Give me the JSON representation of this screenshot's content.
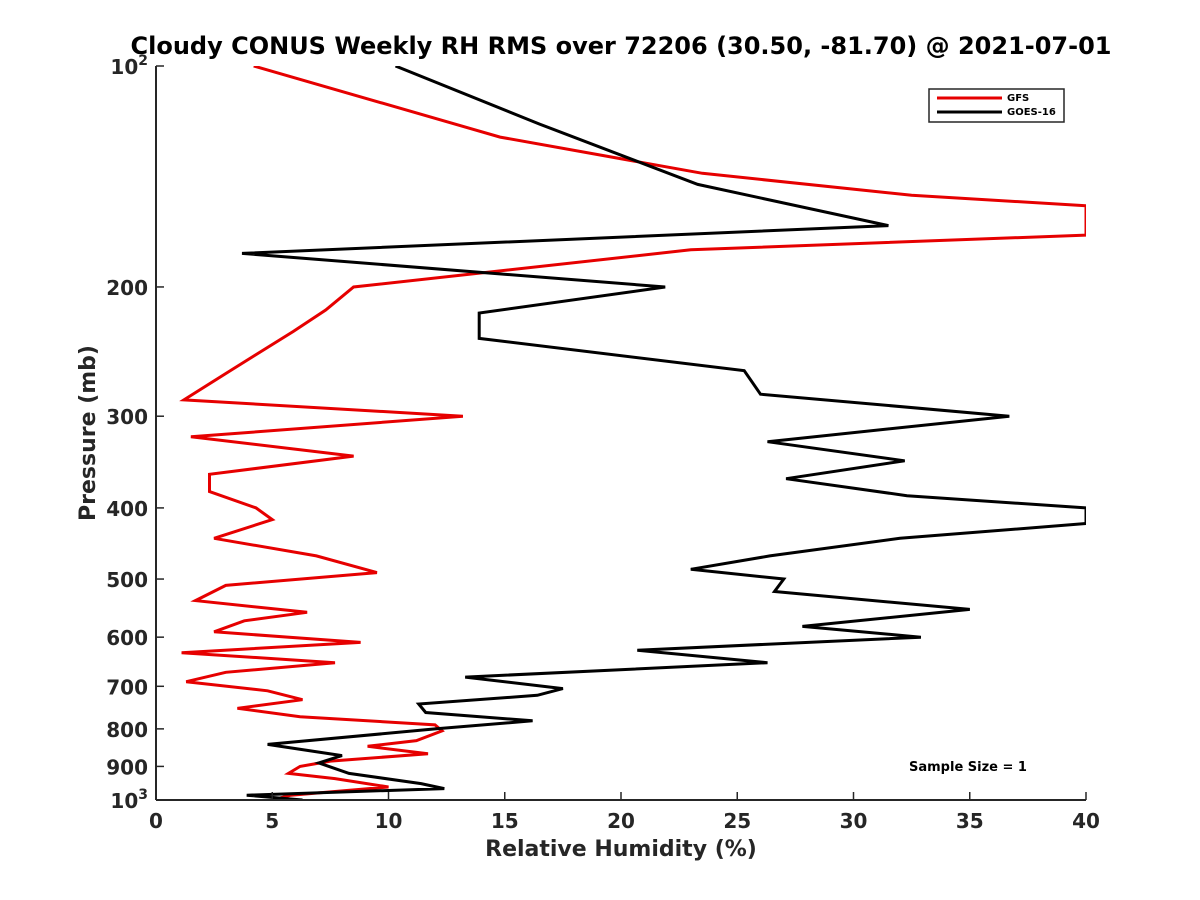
{
  "chart_data": {
    "type": "line",
    "title": "Cloudy CONUS Weekly RH RMS over 72206 (30.50, -81.70) @ 2021-07-01",
    "xlabel": "Relative Humidity (%)",
    "ylabel": "Pressure (mb)",
    "xlim": [
      0,
      40
    ],
    "ylim": [
      100,
      1000
    ],
    "yscale": "log",
    "y_reversed": true,
    "grid": false,
    "legend_position": "top-right",
    "x_ticks": [
      0,
      5,
      10,
      15,
      20,
      25,
      30,
      35,
      40
    ],
    "x_tick_labels": [
      "0",
      "5",
      "10",
      "15",
      "20",
      "25",
      "30",
      "35",
      "40"
    ],
    "y_ticks": [
      100,
      200,
      300,
      400,
      500,
      600,
      700,
      800,
      900,
      1000
    ],
    "y_tick_labels": [
      {
        "base": "10",
        "sup": "2"
      },
      {
        "base": "200",
        "sup": ""
      },
      {
        "base": "300",
        "sup": ""
      },
      {
        "base": "400",
        "sup": ""
      },
      {
        "base": "500",
        "sup": ""
      },
      {
        "base": "600",
        "sup": ""
      },
      {
        "base": "700",
        "sup": ""
      },
      {
        "base": "800",
        "sup": ""
      },
      {
        "base": "900",
        "sup": ""
      },
      {
        "base": "10",
        "sup": "3"
      }
    ],
    "annotation": "Sample Size = 1",
    "series": [
      {
        "name": "GFS",
        "color": "#e60000",
        "points": [
          [
            4.2,
            100
          ],
          [
            14.8,
            125
          ],
          [
            23.5,
            140
          ],
          [
            32.5,
            150
          ],
          [
            40,
            155
          ],
          [
            40,
            170
          ],
          [
            23,
            178
          ],
          [
            8.5,
            200
          ],
          [
            7.3,
            215
          ],
          [
            5.9,
            230
          ],
          [
            3.2,
            260
          ],
          [
            1.2,
            285
          ],
          [
            13.2,
            300
          ],
          [
            1.5,
            320
          ],
          [
            8.5,
            340
          ],
          [
            2.3,
            360
          ],
          [
            2.3,
            380
          ],
          [
            4.3,
            400
          ],
          [
            5.0,
            415
          ],
          [
            2.5,
            440
          ],
          [
            6.9,
            465
          ],
          [
            9.5,
            490
          ],
          [
            3.0,
            510
          ],
          [
            1.7,
            535
          ],
          [
            6.5,
            555
          ],
          [
            3.8,
            570
          ],
          [
            2.5,
            590
          ],
          [
            8.8,
            610
          ],
          [
            1.1,
            630
          ],
          [
            7.7,
            650
          ],
          [
            3.0,
            670
          ],
          [
            1.3,
            690
          ],
          [
            4.8,
            710
          ],
          [
            6.3,
            730
          ],
          [
            3.5,
            750
          ],
          [
            6.2,
            770
          ],
          [
            12.0,
            790
          ],
          [
            12.3,
            805
          ],
          [
            11.2,
            830
          ],
          [
            9.1,
            845
          ],
          [
            11.7,
            865
          ],
          [
            7.5,
            885
          ],
          [
            6.2,
            900
          ],
          [
            5.7,
            920
          ],
          [
            7.7,
            935
          ],
          [
            10.0,
            960
          ],
          [
            5.8,
            985
          ],
          [
            5.0,
            1000
          ]
        ]
      },
      {
        "name": "GOES-16",
        "color": "#000000",
        "points": [
          [
            10.3,
            100
          ],
          [
            16.5,
            120
          ],
          [
            23.3,
            145
          ],
          [
            31.5,
            165
          ],
          [
            3.7,
            180
          ],
          [
            21.9,
            200
          ],
          [
            13.9,
            217
          ],
          [
            13.9,
            235
          ],
          [
            25.3,
            260
          ],
          [
            26.0,
            280
          ],
          [
            36.7,
            300
          ],
          [
            26.3,
            325
          ],
          [
            32.2,
            345
          ],
          [
            27.1,
            365
          ],
          [
            32.3,
            385
          ],
          [
            40,
            400
          ],
          [
            40,
            420
          ],
          [
            32.0,
            440
          ],
          [
            26.4,
            465
          ],
          [
            23.0,
            485
          ],
          [
            27.0,
            500
          ],
          [
            26.6,
            520
          ],
          [
            35.0,
            550
          ],
          [
            27.8,
            580
          ],
          [
            32.9,
            600
          ],
          [
            20.7,
            625
          ],
          [
            26.3,
            650
          ],
          [
            13.3,
            680
          ],
          [
            17.5,
            705
          ],
          [
            16.4,
            720
          ],
          [
            11.3,
            740
          ],
          [
            11.6,
            760
          ],
          [
            16.2,
            780
          ],
          [
            12.0,
            800
          ],
          [
            4.8,
            840
          ],
          [
            8.0,
            870
          ],
          [
            7.0,
            890
          ],
          [
            8.3,
            920
          ],
          [
            11.4,
            950
          ],
          [
            12.4,
            965
          ],
          [
            3.9,
            985
          ],
          [
            6.3,
            1000
          ]
        ]
      }
    ]
  }
}
